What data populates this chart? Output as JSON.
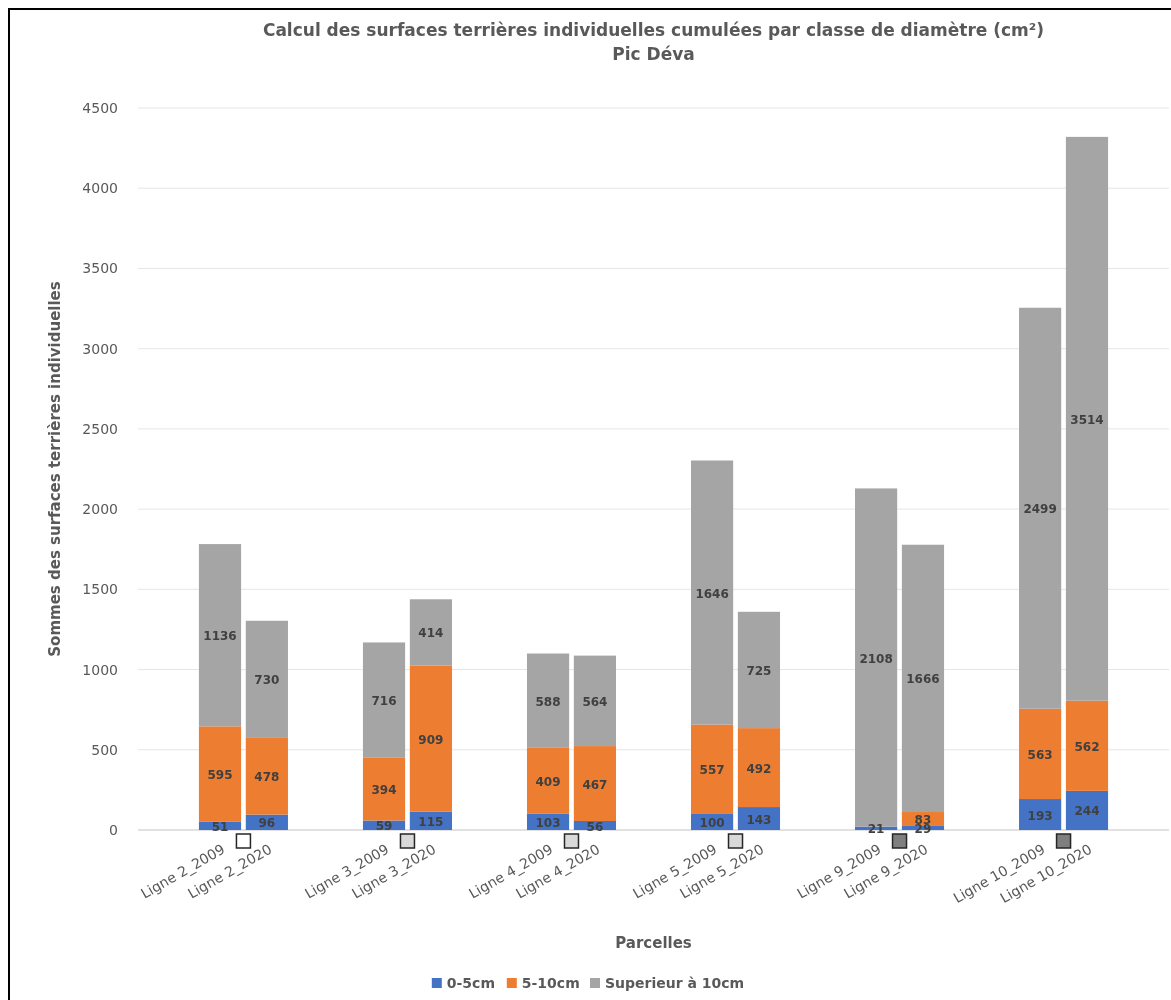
{
  "chart_data": {
    "type": "bar",
    "title": "Calcul des surfaces terrières individuelles cumulées par classe de diamètre (cm²)",
    "subtitle": "Pic Déva",
    "xlabel": "Parcelles",
    "ylabel": "Sommes des surfaces terrières individuelles",
    "categories": [
      "Ligne 2_2009",
      "Ligne 2_2020",
      "Ligne 3_2009",
      "Ligne 3_2020",
      "Ligne 4_2009",
      "Ligne 4_2020",
      "Ligne 5_2009",
      "Ligne 5_2020",
      "Ligne 9_2009",
      "Ligne 9_2020",
      "Ligne 10_2009",
      "Ligne 10_2020"
    ],
    "series": [
      {
        "name": "0-5cm",
        "color": "#4472c4",
        "values": [
          51,
          96,
          59,
          115,
          103,
          56,
          100,
          143,
          21,
          29,
          193,
          244
        ]
      },
      {
        "name": "5-10cm",
        "color": "#ed7d31",
        "values": [
          595,
          478,
          394,
          909,
          409,
          467,
          557,
          492,
          null,
          83,
          563,
          562
        ]
      },
      {
        "name": "Superieur à 10cm",
        "color": "#a5a5a5",
        "values": [
          1136,
          730,
          716,
          414,
          588,
          564,
          1646,
          725,
          2108,
          1666,
          2499,
          3514
        ]
      }
    ],
    "stacked": true,
    "data_labels": true,
    "ylim": [
      0,
      4500
    ],
    "yticks": [
      0,
      500,
      1000,
      1500,
      2000,
      2500,
      3000,
      3500,
      4000,
      4500
    ],
    "grid": "y",
    "legend": "bottom"
  }
}
